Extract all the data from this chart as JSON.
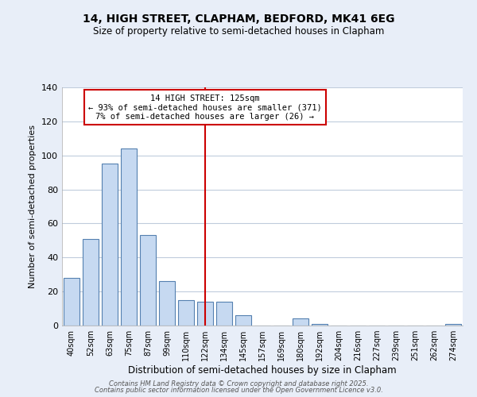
{
  "title": "14, HIGH STREET, CLAPHAM, BEDFORD, MK41 6EG",
  "subtitle": "Size of property relative to semi-detached houses in Clapham",
  "xlabel": "Distribution of semi-detached houses by size in Clapham",
  "ylabel": "Number of semi-detached properties",
  "categories": [
    "40sqm",
    "52sqm",
    "63sqm",
    "75sqm",
    "87sqm",
    "99sqm",
    "110sqm",
    "122sqm",
    "134sqm",
    "145sqm",
    "157sqm",
    "169sqm",
    "180sqm",
    "192sqm",
    "204sqm",
    "216sqm",
    "227sqm",
    "239sqm",
    "251sqm",
    "262sqm",
    "274sqm"
  ],
  "values": [
    28,
    51,
    95,
    104,
    53,
    26,
    15,
    14,
    14,
    6,
    0,
    0,
    4,
    1,
    0,
    0,
    0,
    0,
    0,
    0,
    1
  ],
  "bar_color": "#c6d9f1",
  "bar_edge_color": "#5580b0",
  "property_line_index": 7,
  "annotation_line1": "14 HIGH STREET: 125sqm",
  "annotation_line2": "← 93% of semi-detached houses are smaller (371)",
  "annotation_line3": "7% of semi-detached houses are larger (26) →",
  "annotation_box_color": "#cc0000",
  "ylim": [
    0,
    140
  ],
  "yticks": [
    0,
    20,
    40,
    60,
    80,
    100,
    120,
    140
  ],
  "background_color": "#e8eef8",
  "plot_background": "#ffffff",
  "grid_color": "#c0ccdc",
  "footer_line1": "Contains HM Land Registry data © Crown copyright and database right 2025.",
  "footer_line2": "Contains public sector information licensed under the Open Government Licence v3.0."
}
